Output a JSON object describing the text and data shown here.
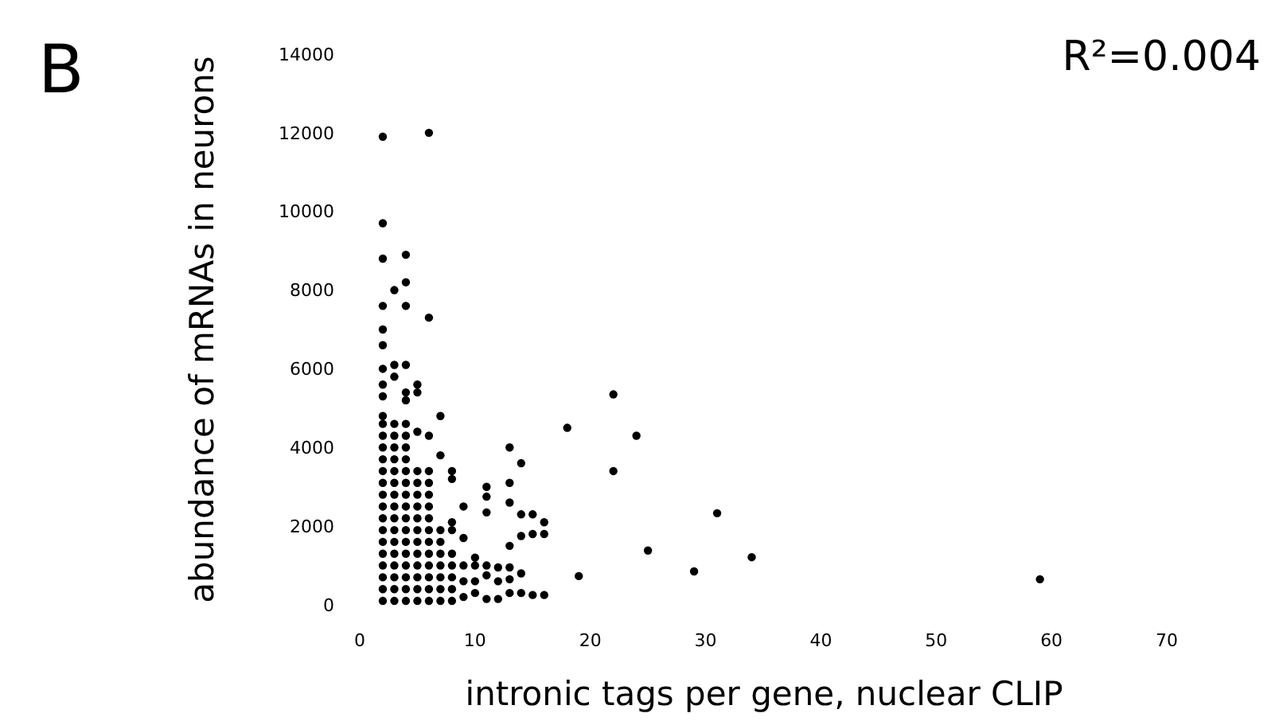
{
  "chart_data": {
    "type": "scatter",
    "xlabel": "intronic tags per gene, nuclear CLIP",
    "ylabel": "abundance of mRNAs in neurons",
    "annotations": [
      "B",
      "R²=0.004"
    ],
    "xlim": [
      0,
      70
    ],
    "xticks": [
      0,
      10,
      20,
      30,
      40,
      50,
      60,
      70
    ],
    "ylim": [
      0,
      14000
    ],
    "yticks": [
      0,
      2000,
      4000,
      6000,
      8000,
      10000,
      12000,
      14000
    ],
    "grid": false,
    "marker": "circle",
    "series": [
      {
        "color": "#000000",
        "x": [
          2,
          2,
          2,
          2,
          2,
          2,
          2,
          2,
          2,
          2,
          2,
          2,
          2,
          2,
          2,
          2,
          2,
          2,
          2,
          2,
          2,
          2,
          2,
          2,
          2,
          2,
          3,
          3,
          3,
          3,
          3,
          3,
          3,
          3,
          3,
          3,
          3,
          3,
          3,
          3,
          3,
          3,
          3,
          3,
          3,
          4,
          4,
          4,
          4,
          4,
          4,
          4,
          4,
          4,
          4,
          4,
          4,
          4,
          4,
          4,
          4,
          4,
          4,
          4,
          4,
          4,
          4,
          5,
          5,
          5,
          5,
          5,
          5,
          5,
          5,
          5,
          5,
          5,
          5,
          5,
          5,
          5,
          6,
          6,
          6,
          6,
          6,
          6,
          6,
          6,
          6,
          6,
          6,
          6,
          6,
          6,
          6,
          7,
          7,
          7,
          7,
          7,
          7,
          7,
          7,
          7,
          8,
          8,
          8,
          8,
          8,
          8,
          8,
          8,
          8,
          9,
          9,
          9,
          9,
          9,
          10,
          10,
          10,
          10,
          11,
          11,
          11,
          11,
          11,
          11,
          12,
          12,
          12,
          13,
          13,
          13,
          13,
          13,
          13,
          13,
          14,
          14,
          14,
          14,
          14,
          15,
          15,
          15,
          16,
          16,
          16,
          18,
          19,
          22,
          22,
          24,
          25,
          29,
          31,
          34,
          59
        ],
        "values": [
          100,
          400,
          700,
          1000,
          1300,
          1600,
          1900,
          2200,
          2500,
          2800,
          3100,
          3400,
          3700,
          4000,
          4300,
          4600,
          4800,
          5300,
          5600,
          6000,
          6600,
          7000,
          7600,
          8800,
          9700,
          11900,
          100,
          400,
          700,
          1000,
          1300,
          1600,
          1900,
          2200,
          2500,
          2800,
          3100,
          3400,
          3700,
          4000,
          4300,
          4600,
          5800,
          6100,
          8000,
          100,
          400,
          700,
          1000,
          1300,
          1600,
          1900,
          2200,
          2500,
          2800,
          3100,
          3400,
          3700,
          4000,
          4300,
          4600,
          5200,
          5400,
          6100,
          7600,
          8200,
          8900,
          100,
          400,
          700,
          1000,
          1300,
          1600,
          1900,
          2200,
          2500,
          2800,
          3100,
          3400,
          4400,
          5400,
          5600,
          100,
          400,
          700,
          1000,
          1300,
          1600,
          1900,
          2200,
          2500,
          2800,
          3100,
          3400,
          4300,
          7300,
          12000,
          100,
          400,
          700,
          1000,
          1300,
          1600,
          1900,
          3800,
          4800,
          100,
          400,
          700,
          1000,
          1300,
          1900,
          2100,
          3200,
          3400,
          200,
          600,
          1000,
          1700,
          2500,
          300,
          600,
          1000,
          1200,
          150,
          750,
          1000,
          2350,
          2750,
          3000,
          150,
          600,
          950,
          300,
          650,
          950,
          1500,
          2600,
          3100,
          4000,
          300,
          800,
          1750,
          2300,
          3600,
          250,
          1800,
          2300,
          250,
          1800,
          2100,
          4500,
          730,
          5350,
          3400,
          4300,
          1380,
          850,
          2330,
          1210,
          650
        ]
      }
    ]
  }
}
